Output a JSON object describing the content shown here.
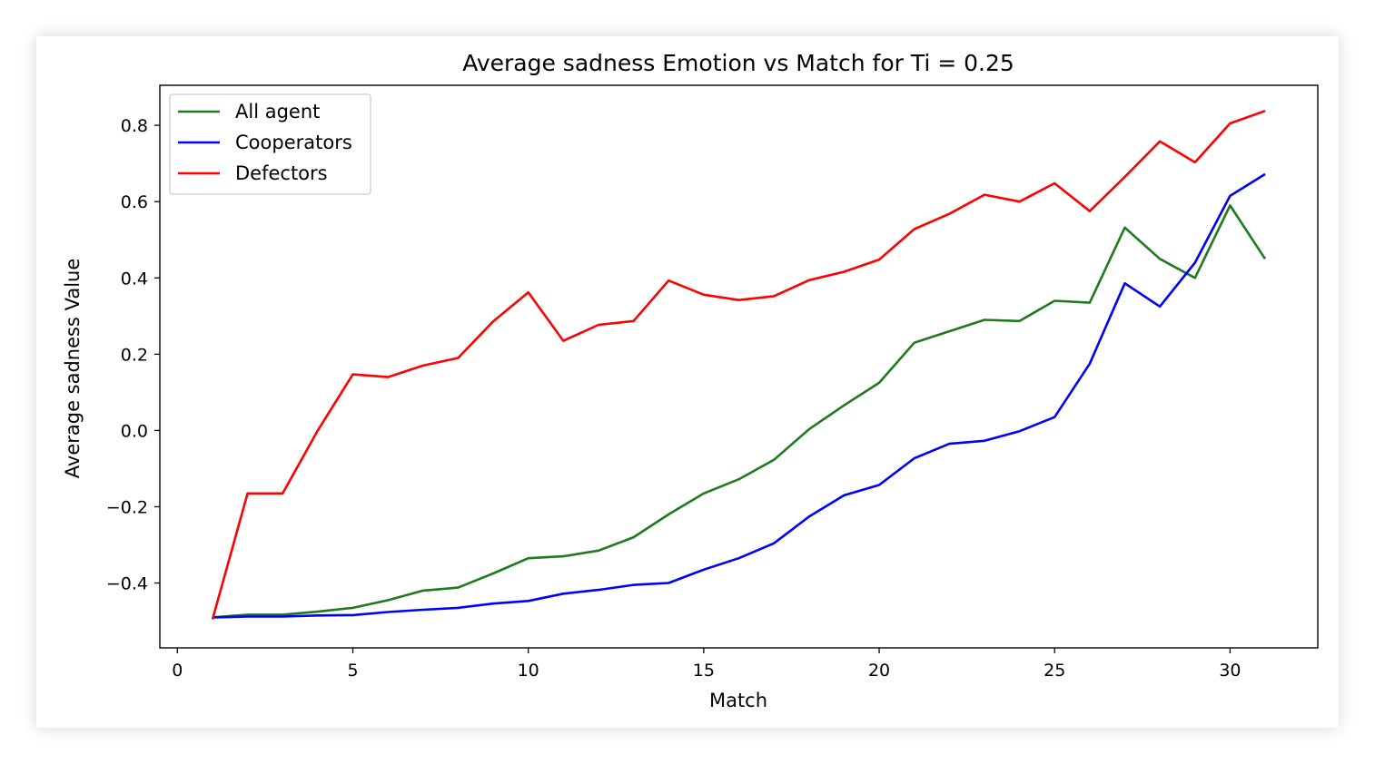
{
  "chart_data": {
    "type": "line",
    "title": "Average sadness Emotion vs Match for Ti = 0.25",
    "xlabel": "Match",
    "ylabel": "Average sadness Value",
    "xlim": [
      -0.5,
      32.5
    ],
    "ylim": [
      -0.57,
      0.905
    ],
    "xticks": [
      0,
      5,
      10,
      15,
      20,
      25,
      30
    ],
    "yticks": [
      -0.4,
      -0.2,
      0.0,
      0.2,
      0.4,
      0.6,
      0.8
    ],
    "ytick_labels": [
      "−0.4",
      "−0.2",
      "0.0",
      "0.2",
      "0.4",
      "0.6",
      "0.8"
    ],
    "grid": false,
    "legend_position": "top-left",
    "x": [
      1,
      2,
      3,
      4,
      5,
      6,
      7,
      8,
      9,
      10,
      11,
      12,
      13,
      14,
      15,
      16,
      17,
      18,
      19,
      20,
      21,
      22,
      23,
      24,
      25,
      26,
      27,
      28,
      29,
      30,
      31
    ],
    "series": [
      {
        "name": "All agent",
        "color": "#1f7a1f",
        "values": [
          -0.49,
          -0.483,
          -0.483,
          -0.475,
          -0.465,
          -0.445,
          -0.42,
          -0.412,
          -0.375,
          -0.335,
          -0.33,
          -0.315,
          -0.28,
          -0.22,
          -0.165,
          -0.128,
          -0.077,
          0.003,
          0.066,
          0.125,
          0.23,
          0.26,
          0.29,
          0.287,
          0.34,
          0.335,
          0.532,
          0.45,
          0.4,
          0.59,
          0.45
        ]
      },
      {
        "name": "Cooperators",
        "color": "#0000ff",
        "values": [
          -0.49,
          -0.488,
          -0.488,
          -0.485,
          -0.484,
          -0.476,
          -0.47,
          -0.465,
          -0.454,
          -0.447,
          -0.428,
          -0.418,
          -0.405,
          -0.4,
          -0.365,
          -0.335,
          -0.296,
          -0.226,
          -0.17,
          -0.143,
          -0.073,
          -0.035,
          -0.027,
          -0.002,
          0.035,
          0.175,
          0.386,
          0.325,
          0.44,
          0.615,
          0.672
        ]
      },
      {
        "name": "Defectors",
        "color": "#ff0000",
        "values": [
          -0.495,
          -0.165,
          -0.165,
          0.0,
          0.147,
          0.14,
          0.17,
          0.19,
          0.286,
          0.362,
          0.235,
          0.277,
          0.287,
          0.393,
          0.356,
          0.342,
          0.352,
          0.394,
          0.416,
          0.448,
          0.528,
          0.568,
          0.618,
          0.6,
          0.648,
          0.575,
          0.665,
          0.758,
          0.703,
          0.805,
          0.838
        ]
      }
    ]
  }
}
